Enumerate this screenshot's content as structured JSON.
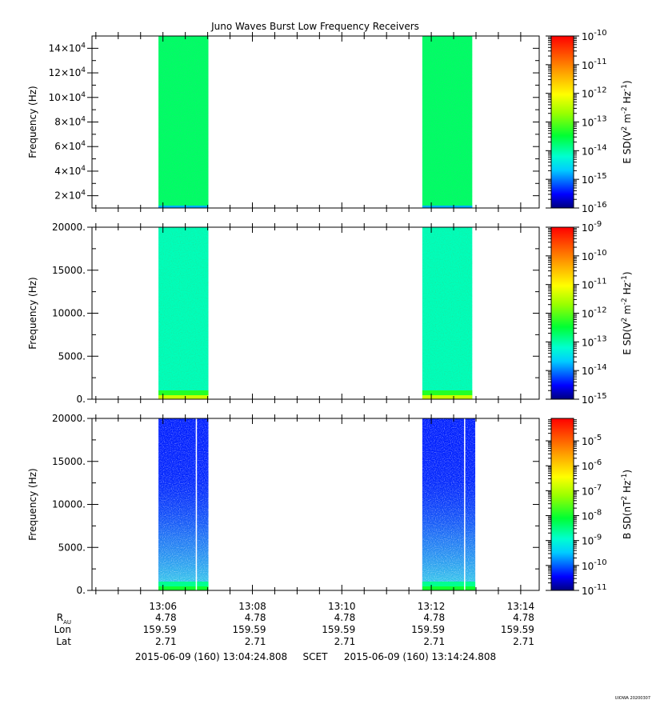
{
  "title": "Juno Waves Burst Low Frequency Receivers",
  "chart_data": [
    {
      "type": "heatmap",
      "ylabel": "Frequency (Hz)",
      "ylim": [
        10000,
        150000
      ],
      "yticks": [
        20000,
        40000,
        60000,
        80000,
        100000,
        120000,
        140000
      ],
      "ytick_labels": [
        [
          "2",
          "4"
        ],
        [
          "4",
          "4"
        ],
        [
          "6",
          "4"
        ],
        [
          "8",
          "4"
        ],
        [
          "10",
          "4"
        ],
        [
          "12",
          "4"
        ],
        [
          "14",
          "4"
        ]
      ],
      "colorbar": {
        "label": "E SD(V² m⁻² Hz⁻¹)",
        "label_parts": [
          "E SD(V",
          "2",
          " m",
          "-2",
          " Hz",
          "-1",
          ")"
        ],
        "range_exp": [
          -16,
          -10
        ],
        "tick_exps": [
          "-16",
          "-15",
          "-14",
          "-13",
          "-12",
          "-11",
          "-10"
        ]
      },
      "bursts": [
        {
          "start": "13:05:54",
          "end": "13:07:01",
          "level_exp": -13.7,
          "bottom_level_exp": -14.8
        },
        {
          "start": "13:11:48",
          "end": "13:12:55",
          "level_exp": -13.7,
          "bottom_level_exp": -14.8
        }
      ]
    },
    {
      "type": "heatmap",
      "ylabel": "Frequency (Hz)",
      "ylim": [
        0,
        20000
      ],
      "yticks": [
        0,
        5000,
        10000,
        15000,
        20000
      ],
      "ytick_labels": [
        "0.",
        "5000.",
        "10000.",
        "15000.",
        "20000."
      ],
      "colorbar": {
        "label": "E SD(V² m⁻² Hz⁻¹)",
        "label_parts": [
          "E SD(V",
          "2",
          " m",
          "-2",
          " Hz",
          "-1",
          ")"
        ],
        "range_exp": [
          -15,
          -9
        ],
        "tick_exps": [
          "-15",
          "-14",
          "-13",
          "-12",
          "-11",
          "-10",
          "-9"
        ]
      },
      "bursts": [
        {
          "start": "13:05:54",
          "end": "13:07:01",
          "level_exp": -13.1,
          "low_band_exp": [
            -12.3,
            -11.4
          ]
        },
        {
          "start": "13:11:48",
          "end": "13:12:55",
          "level_exp": -13.1,
          "low_band_exp": [
            -12.3,
            -11.4
          ]
        }
      ]
    },
    {
      "type": "heatmap",
      "ylabel": "Frequency (Hz)",
      "ylim": [
        0,
        20000
      ],
      "yticks": [
        0,
        5000,
        10000,
        15000,
        20000
      ],
      "ytick_labels": [
        "0.",
        "5000.",
        "10000.",
        "15000.",
        "20000."
      ],
      "colorbar": {
        "label": "B SD(nT² Hz⁻¹)",
        "label_parts": [
          "B SD(nT",
          "2",
          " Hz",
          "-1",
          ")"
        ],
        "range_exp": [
          -11,
          -4.1
        ],
        "tick_exps": [
          "-11",
          "-10",
          "-9",
          "-8",
          "-7",
          "-6",
          "-5"
        ]
      },
      "bursts": [
        {
          "start": "13:05:54",
          "end": "13:07:01",
          "level_exp": -10.3,
          "bottom_level_exp": -8.9,
          "low_band_exp": [
            -8.6,
            -8.0
          ],
          "gap_time": "13:06:44"
        },
        {
          "start": "13:11:48",
          "end": "13:12:59",
          "level_exp": -10.3,
          "bottom_level_exp": -8.9,
          "low_band_exp": [
            -8.6,
            -8.0
          ],
          "gap_time": "13:12:44"
        }
      ]
    }
  ],
  "x_axis": {
    "range": [
      "13:04:24.808",
      "13:14:24.808"
    ],
    "major_ticks": [
      "13:06",
      "13:08",
      "13:10",
      "13:12",
      "13:14"
    ]
  },
  "ephemeris": {
    "row_labels": [
      "R",
      "Lon",
      "Lat"
    ],
    "r_subscript": "AU",
    "rows": [
      [
        "4.78",
        "4.78",
        "4.78",
        "4.78",
        "4.78"
      ],
      [
        "159.59",
        "159.59",
        "159.59",
        "159.59",
        "159.59"
      ],
      [
        "2.71",
        "2.71",
        "2.71",
        "2.71",
        "2.71"
      ]
    ]
  },
  "time_range": {
    "start": "2015-06-09 (160) 13:04:24.808",
    "label": "SCET",
    "end": "2015-06-09 (160) 13:14:24.808"
  },
  "footer_tag": "UIOWA 20200307"
}
